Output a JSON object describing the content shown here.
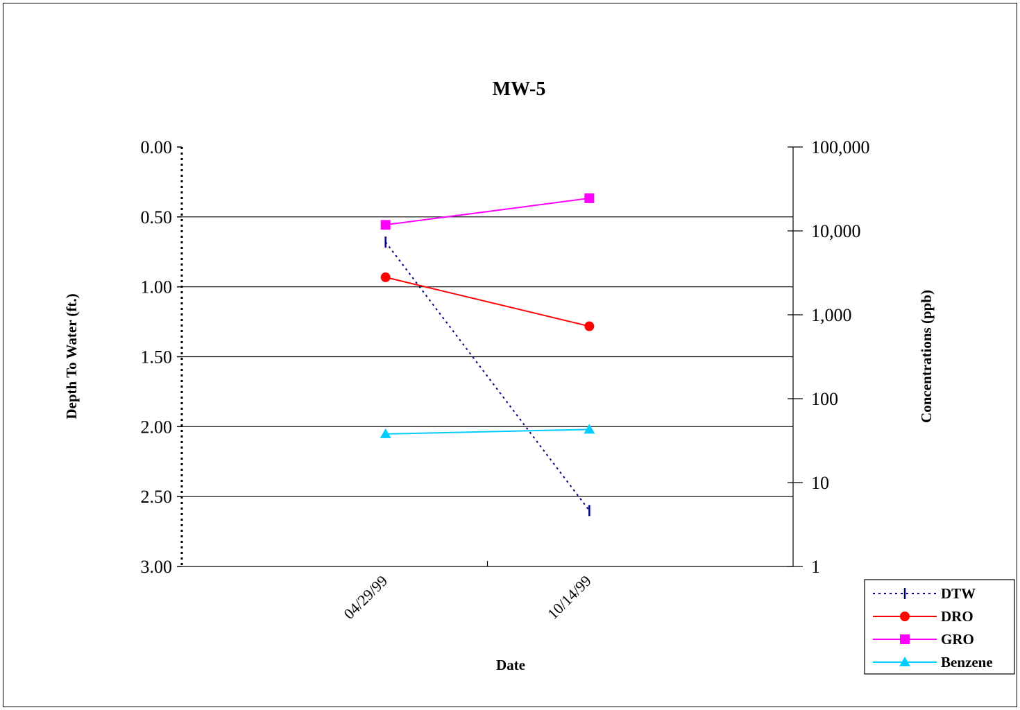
{
  "chart_data": {
    "type": "line",
    "title": "MW-5",
    "xlabel": "Date",
    "ylabel_left": "Depth To Water (ft.)",
    "ylabel_right": "Concentrations (ppb)",
    "categories": [
      "04/29/99",
      "10/14/99"
    ],
    "left_axis": {
      "ticks": [
        "0.00",
        "0.50",
        "1.00",
        "1.50",
        "2.00",
        "2.50",
        "3.00"
      ],
      "range": [
        0,
        3
      ],
      "inverted": true,
      "line_style": "dotted"
    },
    "right_axis": {
      "ticks": [
        "100,000",
        "10,000",
        "1,000",
        "100",
        "10",
        "1"
      ],
      "range": [
        1,
        100000
      ],
      "scale": "log"
    },
    "grid": "horizontal",
    "legend_position": "bottom-right",
    "series": [
      {
        "name": "DTW",
        "axis": "left",
        "values": [
          0.68,
          2.6
        ],
        "color": "#000080",
        "marker": "dash",
        "line": "dotted"
      },
      {
        "name": "DRO",
        "axis": "right",
        "values": [
          2800,
          730
        ],
        "color": "#ff0000",
        "marker": "circle",
        "line": "solid"
      },
      {
        "name": "GRO",
        "axis": "right",
        "values": [
          11800,
          24500
        ],
        "color": "#ff00ff",
        "marker": "square",
        "line": "solid"
      },
      {
        "name": "Benzene",
        "axis": "right",
        "values": [
          38,
          43
        ],
        "color": "#00ccff",
        "marker": "triangle",
        "line": "solid"
      }
    ]
  }
}
